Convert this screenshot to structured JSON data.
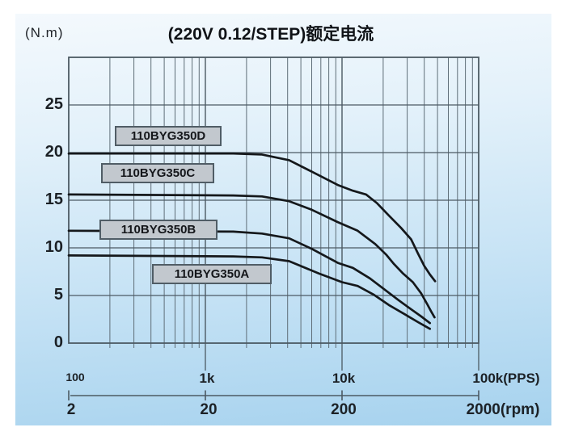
{
  "header": {
    "y_unit": "(N.m)",
    "title": "(220V 0.12/STEP)额定电流"
  },
  "colors": {
    "panel_top": "#f4f9fd",
    "panel_bottom": "#a6d2ee",
    "grid_minor": "#5f6e78",
    "grid_major": "#4c5a63",
    "plot_border": "#4c5a63",
    "curve": "#15181b",
    "label_box_fill": "#c2c8ce",
    "label_box_border": "#505d66",
    "text": "#1c2126"
  },
  "chart_data": {
    "type": "line",
    "title": "(220V 0.12/STEP)额定电流",
    "y_axis": {
      "unit": "(N.m)",
      "min": 0,
      "max": 30,
      "tick_values": [
        0,
        5,
        10,
        15,
        20,
        25
      ],
      "tick_labels": [
        "0",
        "5",
        "10",
        "15",
        "20",
        "25"
      ]
    },
    "x_axis": {
      "scale": "log",
      "min_pps": 100,
      "max_pps": 100000,
      "pps_ticks": [
        {
          "value": 100,
          "label": "100",
          "dx": 8
        },
        {
          "value": 1000,
          "label": "1k",
          "dx": 2
        },
        {
          "value": 10000,
          "label": "10k",
          "dx": 2
        },
        {
          "value": 100000,
          "label": "100k(PPS)",
          "dx": 34
        }
      ],
      "rpm_ticks": [
        {
          "value": 100,
          "label": "2",
          "dx": 3
        },
        {
          "value": 1000,
          "label": "20",
          "dx": 4
        },
        {
          "value": 10000,
          "label": "200",
          "dx": 2
        },
        {
          "value": 100000,
          "label": "2000(rpm)",
          "dx": 30
        }
      ]
    },
    "grid": {
      "minor_per_decade": [
        2,
        3,
        4,
        5,
        6,
        7,
        8,
        9
      ],
      "grid_on": true
    },
    "series": [
      {
        "name": "110BYG350D",
        "points": [
          [
            100,
            19.9
          ],
          [
            1600,
            19.9
          ],
          [
            2600,
            19.8
          ],
          [
            4100,
            19.2
          ],
          [
            6000,
            18.0
          ],
          [
            9300,
            16.6
          ],
          [
            12000,
            16.0
          ],
          [
            15000,
            15.6
          ],
          [
            18000,
            14.7
          ],
          [
            22000,
            13.4
          ],
          [
            27000,
            12.1
          ],
          [
            32000,
            10.9
          ],
          [
            36000,
            9.4
          ],
          [
            40000,
            8.1
          ],
          [
            44000,
            7.2
          ],
          [
            48000,
            6.5
          ]
        ]
      },
      {
        "name": "110BYG350C",
        "points": [
          [
            100,
            15.6
          ],
          [
            1600,
            15.5
          ],
          [
            2600,
            15.4
          ],
          [
            4100,
            14.9
          ],
          [
            6000,
            14.0
          ],
          [
            9300,
            12.7
          ],
          [
            13000,
            11.8
          ],
          [
            17500,
            10.4
          ],
          [
            21000,
            9.3
          ],
          [
            24000,
            8.3
          ],
          [
            28000,
            7.3
          ],
          [
            33000,
            6.4
          ],
          [
            38000,
            5.2
          ],
          [
            42000,
            4.1
          ],
          [
            45000,
            3.3
          ],
          [
            47500,
            2.7
          ]
        ]
      },
      {
        "name": "110BYG350B",
        "points": [
          [
            100,
            11.8
          ],
          [
            1600,
            11.7
          ],
          [
            2600,
            11.5
          ],
          [
            4100,
            11.0
          ],
          [
            6000,
            9.9
          ],
          [
            9400,
            8.4
          ],
          [
            12000,
            7.9
          ],
          [
            16000,
            6.8
          ],
          [
            21000,
            5.5
          ],
          [
            26000,
            4.5
          ],
          [
            31000,
            3.7
          ],
          [
            38000,
            2.8
          ],
          [
            44000,
            2.1
          ]
        ]
      },
      {
        "name": "110BYG350A",
        "points": [
          [
            100,
            9.2
          ],
          [
            1600,
            9.1
          ],
          [
            2600,
            9.0
          ],
          [
            4100,
            8.6
          ],
          [
            6800,
            7.3
          ],
          [
            10000,
            6.4
          ],
          [
            13000,
            6.0
          ],
          [
            17000,
            5.1
          ],
          [
            22000,
            4.0
          ],
          [
            29000,
            3.0
          ],
          [
            36000,
            2.2
          ],
          [
            44000,
            1.5
          ]
        ]
      }
    ]
  }
}
